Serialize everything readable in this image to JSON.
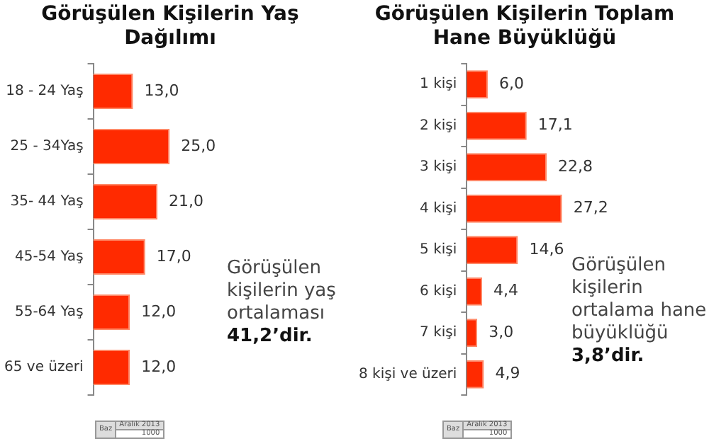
{
  "chart_data": [
    {
      "type": "bar",
      "orientation": "horizontal",
      "title": "Görüşülen Kişilerin Yaş Dağılımı",
      "categories": [
        "18 - 24 Yaş",
        "25 - 34Yaş",
        "35- 44 Yaş",
        "45-54 Yaş",
        "55-64 Yaş",
        "65 ve üzeri"
      ],
      "values": [
        13,
        25,
        21,
        17,
        12,
        12
      ],
      "value_labels": [
        "13,0",
        "25,0",
        "21,0",
        "17,0",
        "12,0",
        "12,0"
      ],
      "color": "#ff2a00",
      "tick_labels": "y",
      "annotations": [
        "Görüşülen kişilerin yaş ortalaması 41,2’dir.",
        "Baz",
        "Aralık 2013",
        "1000"
      ]
    },
    {
      "type": "bar",
      "orientation": "horizontal",
      "title": "Görüşülen Kişilerin Toplam Hane Büyüklüğü",
      "categories": [
        "1 kişi",
        "2 kişi",
        "3 kişi",
        "4 kişi",
        "5 kişi",
        "6 kişi",
        "7 kişi",
        "8 kişi ve üzeri"
      ],
      "values": [
        6,
        17.1,
        22.8,
        27.2,
        14.6,
        4.4,
        3,
        4.9
      ],
      "value_labels": [
        "6,0",
        "17,1",
        "22,8",
        "27,2",
        "14,6",
        "4,4",
        "3,0",
        "4,9"
      ],
      "color": "#ff2a00",
      "tick_labels": "y",
      "annotations": [
        "Görüşülen kişilerin ortalama hane büyüklüğü 3,8’dir.",
        "Baz",
        "Aralık 2013",
        "1000"
      ]
    }
  ]
}
